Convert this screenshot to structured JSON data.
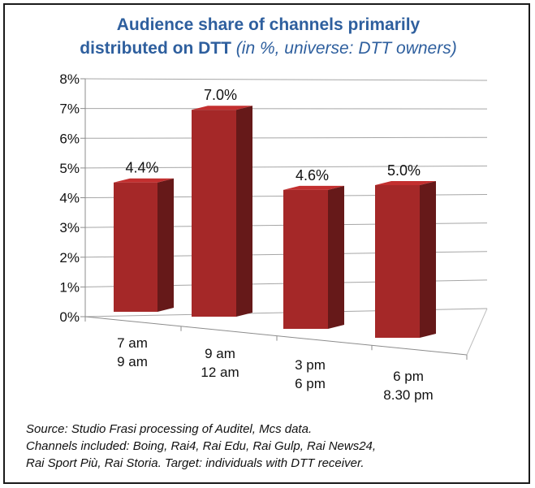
{
  "title": {
    "line1": "Audience share of channels primarily",
    "line2_bold": "distributed on DTT",
    "line2_sub": "(in %, universe: DTT owners)"
  },
  "chart_data": {
    "type": "bar",
    "title": "Audience share of channels primarily distributed on DTT (in %, universe: DTT owners)",
    "categories": [
      [
        "7 am",
        "9 am"
      ],
      [
        "9 am",
        "12 am"
      ],
      [
        "3 pm",
        "6 pm"
      ],
      [
        "6 pm",
        "8.30 pm"
      ]
    ],
    "values": [
      4.4,
      7.0,
      4.6,
      5.0
    ],
    "data_labels": [
      "4.4%",
      "7.0%",
      "4.6%",
      "5.0%"
    ],
    "y_ticks": [
      "0%",
      "1%",
      "2%",
      "3%",
      "4%",
      "5%",
      "6%",
      "7%",
      "8%"
    ],
    "ylim": [
      0,
      8
    ],
    "grid": true,
    "style": "3d-column",
    "bar_color": "#a52828"
  },
  "source": {
    "line1": "Source: Studio Frasi processing of Auditel, Mcs data.",
    "line2": "Channels included: Boing, Rai4, Rai Edu, Rai Gulp, Rai News24,",
    "line3": "Rai Sport Più, Rai Storia. Target: individuals with DTT receiver."
  }
}
